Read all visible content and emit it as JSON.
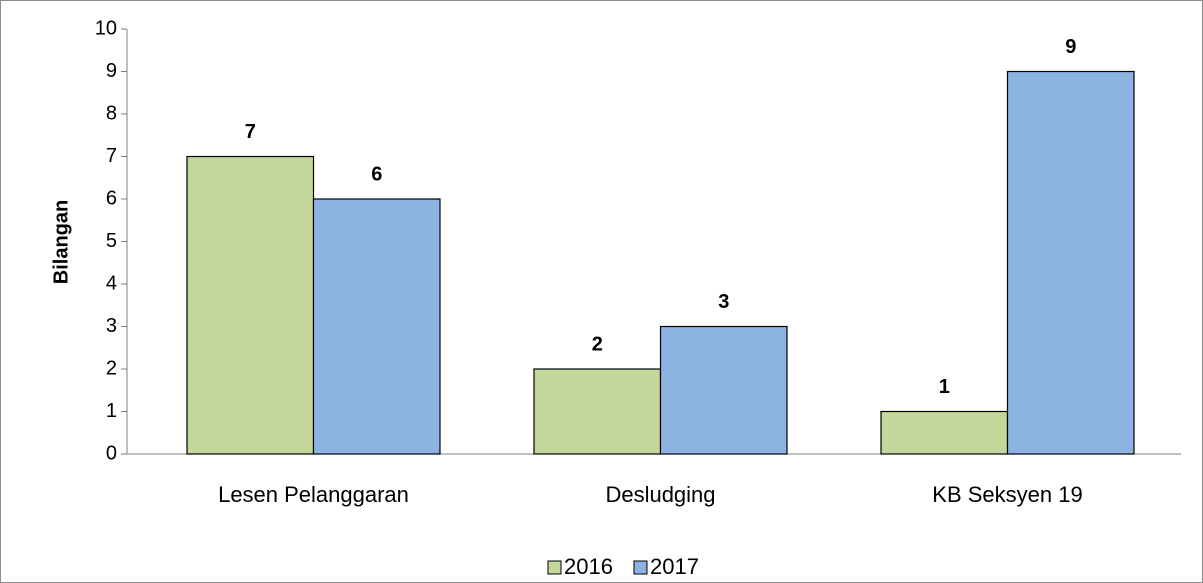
{
  "chart_data": {
    "type": "bar",
    "y_label": "Bilangan",
    "categories": [
      "Lesen Pelanggaran",
      "Desludging",
      "KB Seksyen 19"
    ],
    "series": [
      {
        "name": "2016",
        "color": "#c4d79b",
        "values": [
          7,
          2,
          1
        ]
      },
      {
        "name": "2017",
        "color": "#8db3e2",
        "values": [
          6,
          3,
          9
        ]
      }
    ],
    "ylim": [
      0,
      10
    ],
    "yticks": [
      0,
      1,
      2,
      3,
      4,
      5,
      6,
      7,
      8,
      9,
      10
    ],
    "grid": false,
    "legend": "bottom"
  }
}
